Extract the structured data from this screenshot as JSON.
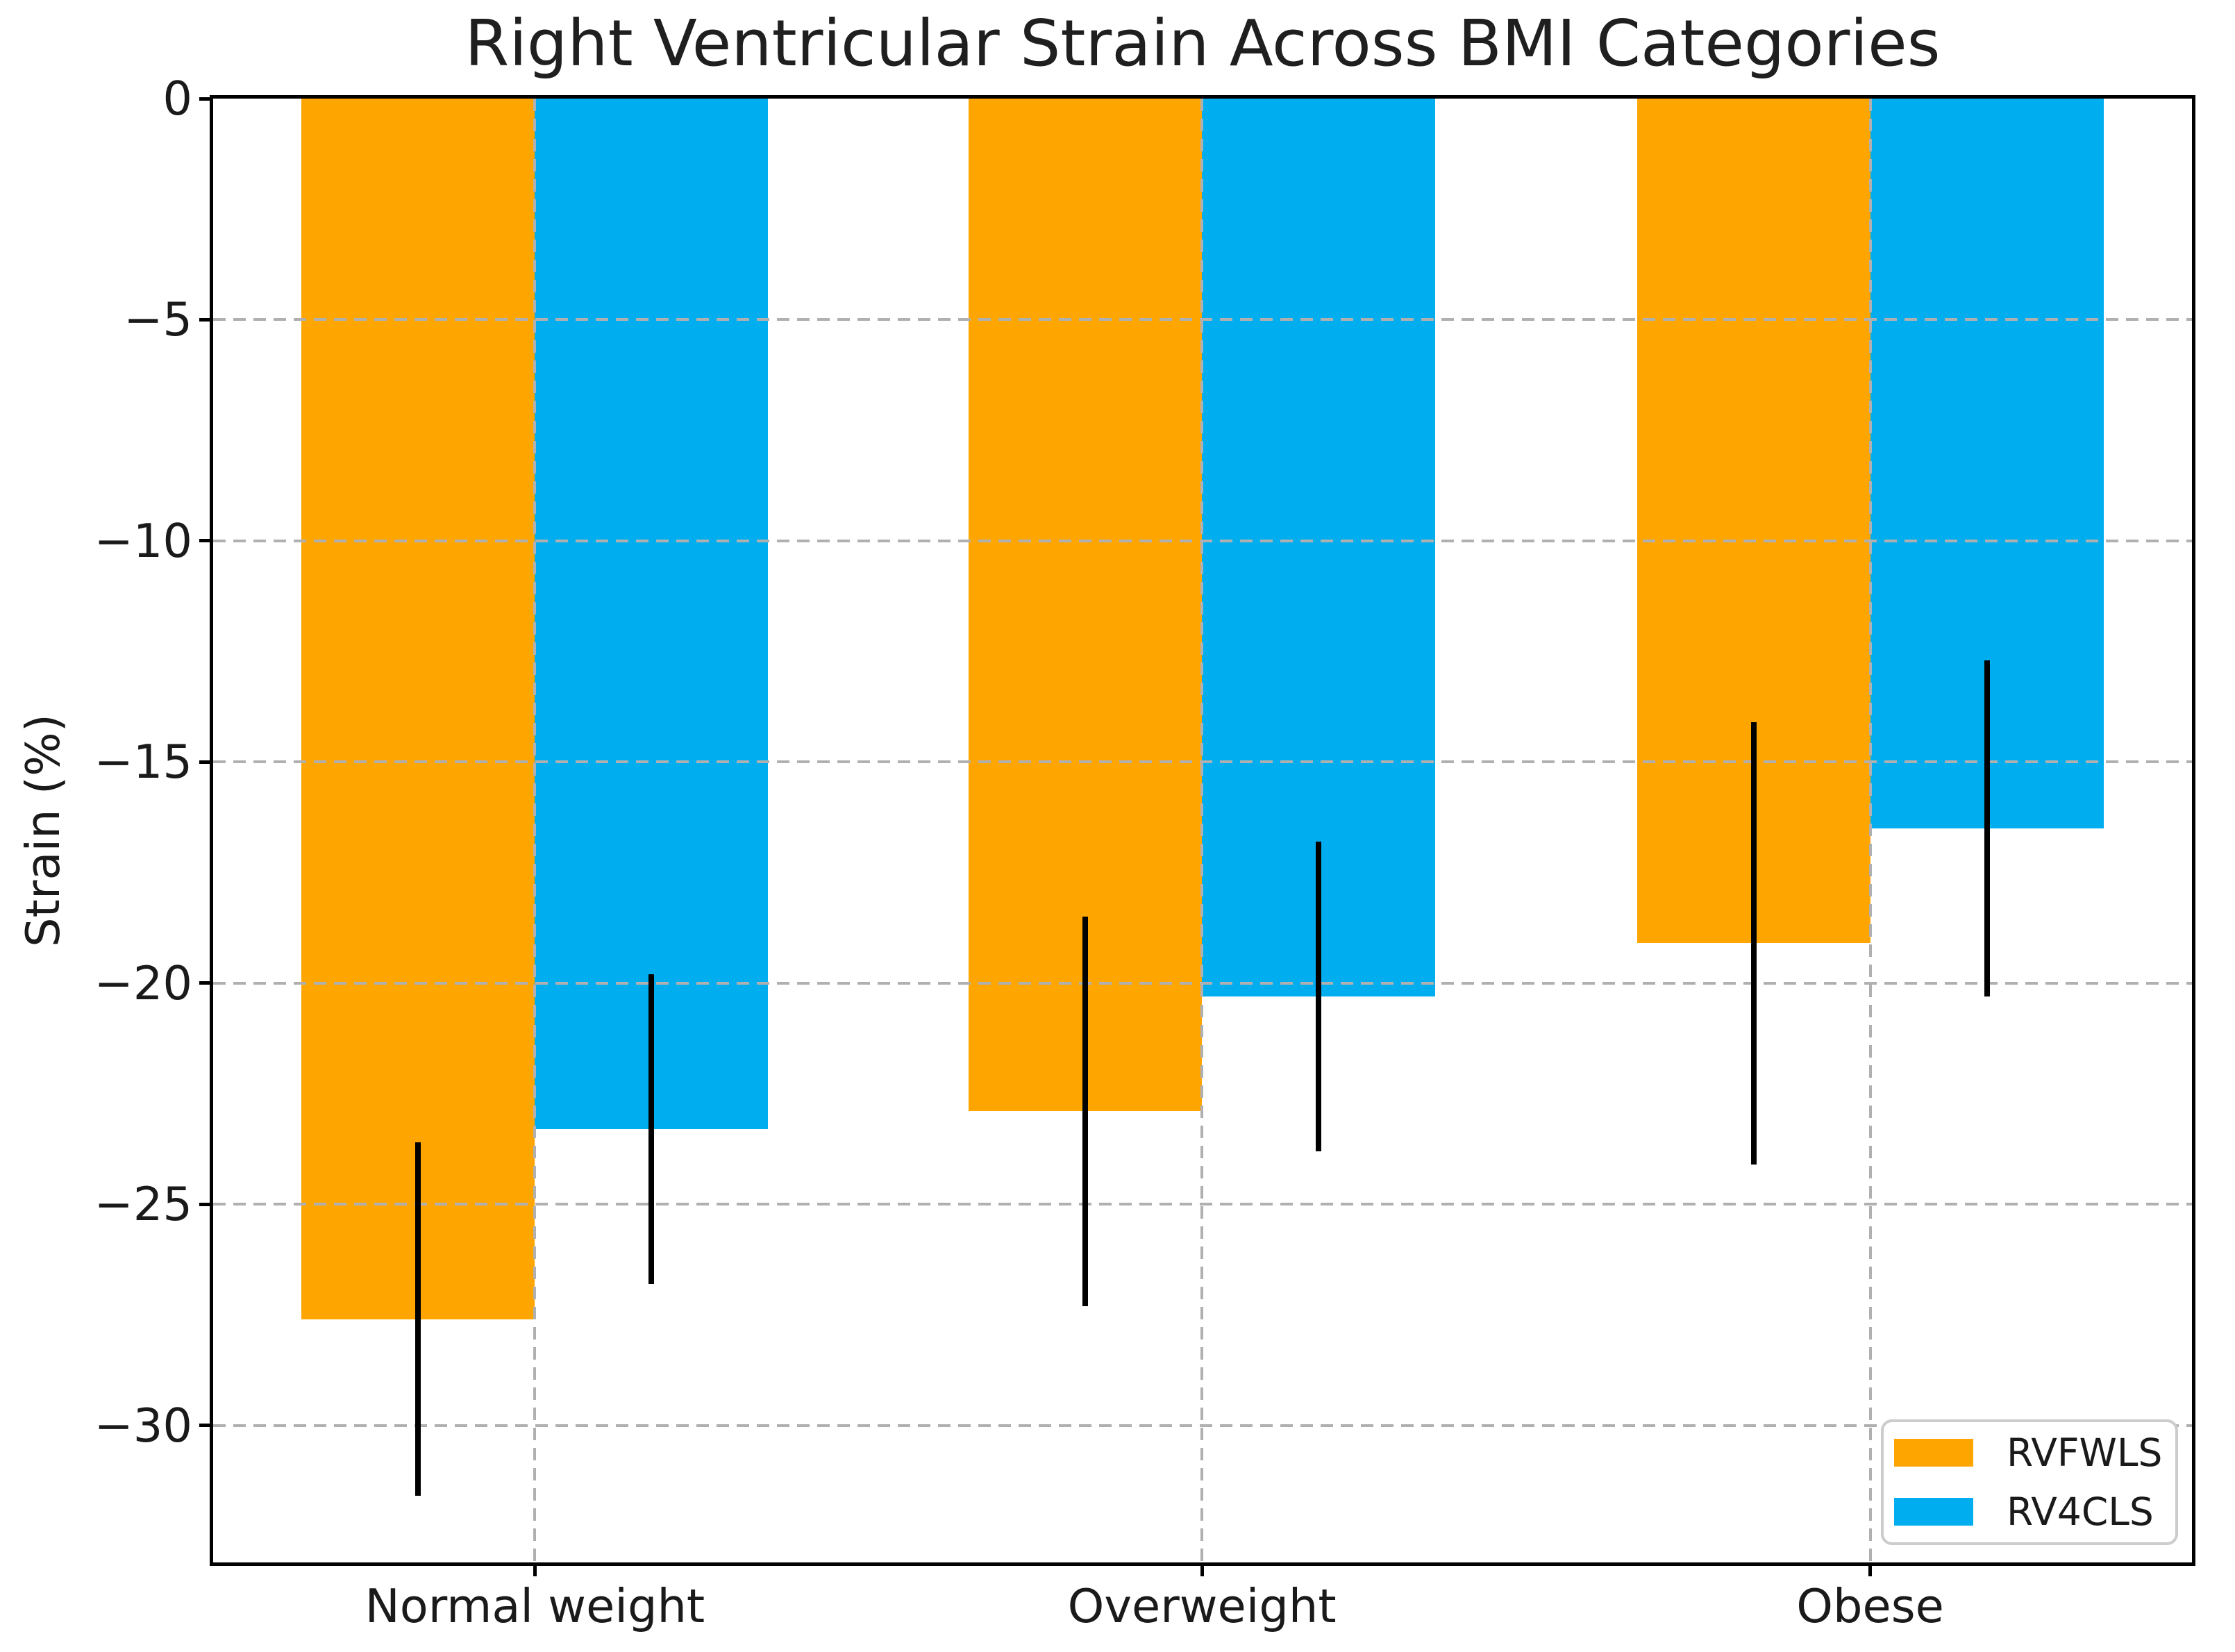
{
  "chart_data": {
    "type": "bar",
    "title": "Right Ventricular Strain Across BMI Categories",
    "xlabel": "",
    "ylabel": "Strain (%)",
    "categories": [
      "Normal weight",
      "Overweight",
      "Obese"
    ],
    "series": [
      {
        "name": "RVFWLS",
        "color": "#FFA500",
        "values": [
          -27.6,
          -22.9,
          -19.1
        ],
        "errors": [
          4.0,
          4.4,
          5.0
        ]
      },
      {
        "name": "RV4CLS",
        "color": "#00AEEF",
        "values": [
          -23.3,
          -20.3,
          -16.5
        ],
        "errors": [
          3.5,
          3.5,
          3.8
        ]
      }
    ],
    "ylim": [
      -33.1,
      0
    ],
    "yticks": [
      0,
      -5,
      -10,
      -15,
      -20,
      -25,
      -30
    ],
    "grid": true,
    "grid_style": "dashed",
    "grid_color": "#b0b0b0",
    "error_bar_color": "#000000",
    "legend_position": "lower right",
    "legend_border_color": "#cccccc"
  }
}
